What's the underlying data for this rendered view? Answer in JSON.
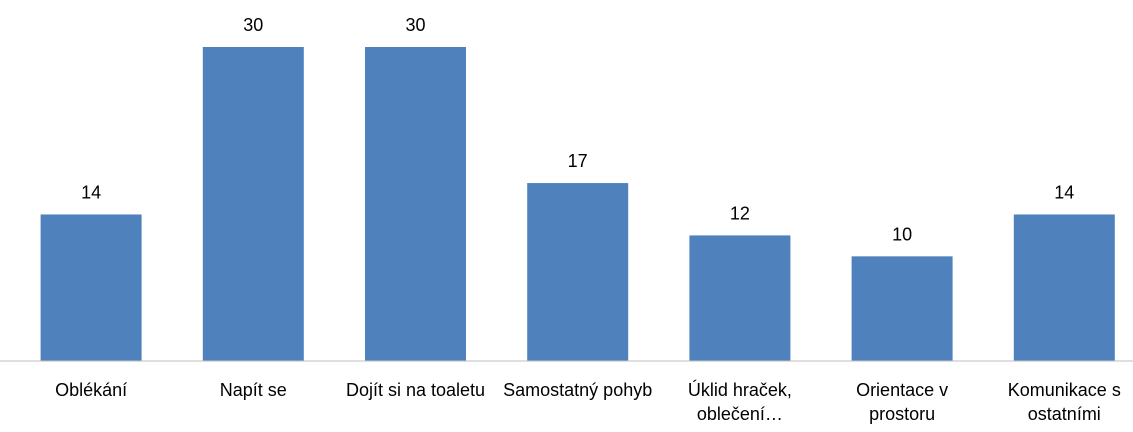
{
  "chart_data": {
    "type": "bar",
    "categories": [
      "Oblékání",
      "Napít se",
      "Dojít si na toaletu",
      "Samostatný pohyb",
      "Úklid hraček, oblečení…",
      "Orientace v prostoru",
      "Komunikace s ostatními"
    ],
    "values": [
      14,
      30,
      30,
      17,
      12,
      10,
      14
    ],
    "color": "#4f81bd",
    "ylim": [
      0,
      30
    ]
  }
}
